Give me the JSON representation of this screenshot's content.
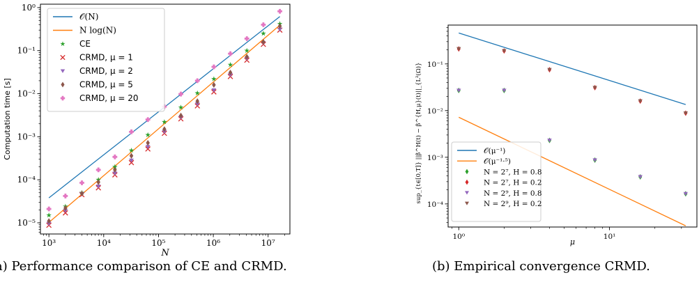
{
  "chart_data": [
    {
      "type": "scatter",
      "title": "",
      "xlabel": "N",
      "ylabel": "Computation time [s]",
      "x_scale": "log",
      "y_scale": "log",
      "xlim": [
        700,
        25000000
      ],
      "ylim": [
        5.5e-06,
        1.2
      ],
      "x_tick_values": [
        1000,
        10000,
        100000,
        1000000,
        10000000
      ],
      "x_tick_labels": [
        "10³",
        "10⁴",
        "10⁵",
        "10⁶",
        "10⁷"
      ],
      "y_tick_values": [
        1e-05,
        0.0001,
        0.001,
        0.01,
        0.1,
        1
      ],
      "y_tick_labels": [
        "10⁻⁵",
        "10⁻⁴",
        "10⁻³",
        "10⁻²",
        "10⁻¹",
        "10⁰"
      ],
      "grid": false,
      "legend_placement": "top-left",
      "x": [
        1000,
        2000,
        4000,
        8000,
        16000,
        32000,
        64000,
        128000,
        256000,
        512000,
        1024000,
        2048000,
        4096000,
        8192000,
        16384000
      ],
      "lines": [
        {
          "name": "𝒪(N)",
          "color": "#1f77b4",
          "x": [
            1000,
            16384000
          ],
          "y": [
            3.8e-05,
            0.62
          ]
        },
        {
          "name": "N log(N)",
          "color": "#ff7f0e",
          "x": [
            1000,
            16384000
          ],
          "y": [
            1.02e-05,
            0.39
          ]
        }
      ],
      "series": [
        {
          "name": "CE",
          "marker": "star",
          "color": "#2ca02c",
          "values": [
            1.5e-05,
            2.4e-05,
            5e-05,
            0.0001,
            0.0002,
            0.00048,
            0.0011,
            0.0022,
            0.0048,
            0.0103,
            0.022,
            0.047,
            0.1,
            0.25,
            0.42
          ]
        },
        {
          "name": "CRMD, μ = 1",
          "marker": "x",
          "color": "#d62728",
          "values": [
            8.8e-06,
            1.7e-05,
            4.5e-05,
            6.5e-05,
            0.00013,
            0.00025,
            0.00052,
            0.0012,
            0.0026,
            0.0052,
            0.011,
            0.025,
            0.06,
            0.14,
            0.3
          ]
        },
        {
          "name": "CRMD, μ = 2",
          "marker": "triangle-down",
          "color": "#9467bd",
          "values": [
            9.5e-06,
            1.9e-05,
            4.6e-05,
            7e-05,
            0.00014,
            0.00028,
            0.00058,
            0.0013,
            0.0028,
            0.0057,
            0.012,
            0.027,
            0.065,
            0.15,
            0.31
          ]
        },
        {
          "name": "CRMD, μ = 5",
          "marker": "thin-diamond",
          "color": "#8c564b",
          "values": [
            1.1e-05,
            2.2e-05,
            4.8e-05,
            8.8e-05,
            0.00017,
            0.00036,
            0.00072,
            0.0015,
            0.0031,
            0.0067,
            0.016,
            0.031,
            0.072,
            0.16,
            0.37
          ]
        },
        {
          "name": "CRMD, μ = 20",
          "marker": "plus-filled",
          "color": "#e377c2",
          "values": [
            2.1e-05,
            4.2e-05,
            8.5e-05,
            0.00017,
            0.00034,
            0.0013,
            0.0025,
            0.005,
            0.0098,
            0.02,
            0.042,
            0.085,
            0.19,
            0.4,
            0.82
          ]
        }
      ]
    },
    {
      "type": "scatter",
      "title": "",
      "xlabel": "μ",
      "ylabel": "sup_{t∈[0,T]} ||β^H(t) − β^{H,μ}(t)||_{L²(Ω)}",
      "x_scale": "log",
      "y_scale": "log",
      "xlim": [
        0.85,
        38
      ],
      "ylim": [
        3.2e-05,
        0.68
      ],
      "x_tick_values": [
        1,
        10
      ],
      "x_tick_labels": [
        "10⁰",
        "10¹"
      ],
      "y_tick_values": [
        0.0001,
        0.001,
        0.01,
        0.1
      ],
      "y_tick_labels": [
        "10⁻⁴",
        "10⁻³",
        "10⁻²",
        "10⁻¹"
      ],
      "grid": false,
      "legend_placement": "lower-left",
      "x": [
        1,
        2,
        4,
        8,
        16,
        32
      ],
      "lines": [
        {
          "name": "𝒪(μ⁻¹)",
          "color": "#1f77b4",
          "x": [
            1,
            32
          ],
          "y": [
            0.46,
            0.0135
          ]
        },
        {
          "name": "𝒪(μ⁻¹·⁵)",
          "color": "#ff7f0e",
          "x": [
            1,
            32
          ],
          "y": [
            0.0072,
            3.4e-05
          ]
        }
      ],
      "series": [
        {
          "name": "N = 2⁷, H = 0.8",
          "marker": "thin-diamond",
          "color": "#2ca02c",
          "values": [
            0.027,
            0.027,
            0.0023,
            0.00087,
            0.00038,
            0.000165
          ]
        },
        {
          "name": "N = 2⁷, H = 0.2",
          "marker": "thin-diamond",
          "color": "#d62728",
          "values": [
            0.21,
            0.19,
            0.075,
            0.031,
            0.016,
            0.0088
          ]
        },
        {
          "name": "N = 2⁹, H = 0.8",
          "marker": "triangle-down",
          "color": "#9467bd",
          "values": [
            0.027,
            0.027,
            0.0023,
            0.00087,
            0.00038,
            0.000165
          ]
        },
        {
          "name": "N = 2⁹, H = 0.2",
          "marker": "triangle-down",
          "color": "#8c564b",
          "values": [
            0.21,
            0.19,
            0.075,
            0.031,
            0.016,
            0.0088
          ]
        }
      ]
    }
  ],
  "captions": {
    "left": "(a) Performance comparison of CE and CRMD.",
    "right": "(b) Empirical convergence CRMD."
  }
}
